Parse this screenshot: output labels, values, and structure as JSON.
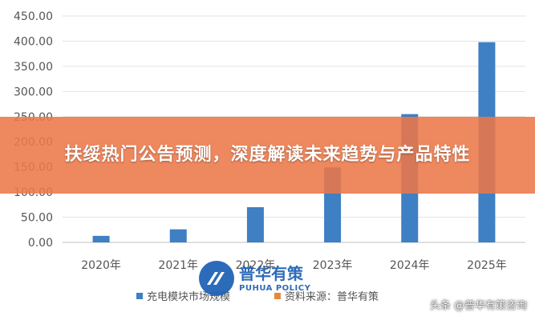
{
  "chart_data": {
    "type": "bar",
    "categories": [
      "2020年",
      "2021年",
      "2022年",
      "2023年",
      "2024年",
      "2025年"
    ],
    "series": [
      {
        "name": "充电模块市场规模",
        "values": [
          13,
          26,
          70,
          149,
          255,
          398
        ],
        "color": "#3f7fc3"
      }
    ],
    "yticks": [
      "0.00",
      "50.00",
      "100.00",
      "150.00",
      "200.00",
      "250.00",
      "300.00",
      "350.00",
      "400.00",
      "450.00"
    ],
    "ylim": [
      0,
      450
    ],
    "grid": true,
    "legend": [
      {
        "label": "充电模块市场规模",
        "color": "#3f7fc3"
      },
      {
        "label": "资料来源：普华有策",
        "color": "#e8893a"
      }
    ],
    "legend_position": "bottom"
  },
  "banner": {
    "title": "扶绥热门公告预测，深度解读未来趋势与产品特性"
  },
  "logo": {
    "name_cn": "普华有策",
    "name_en": "PUHUA POLICY"
  },
  "watermark": {
    "text": "头条 @普华有策咨询"
  }
}
